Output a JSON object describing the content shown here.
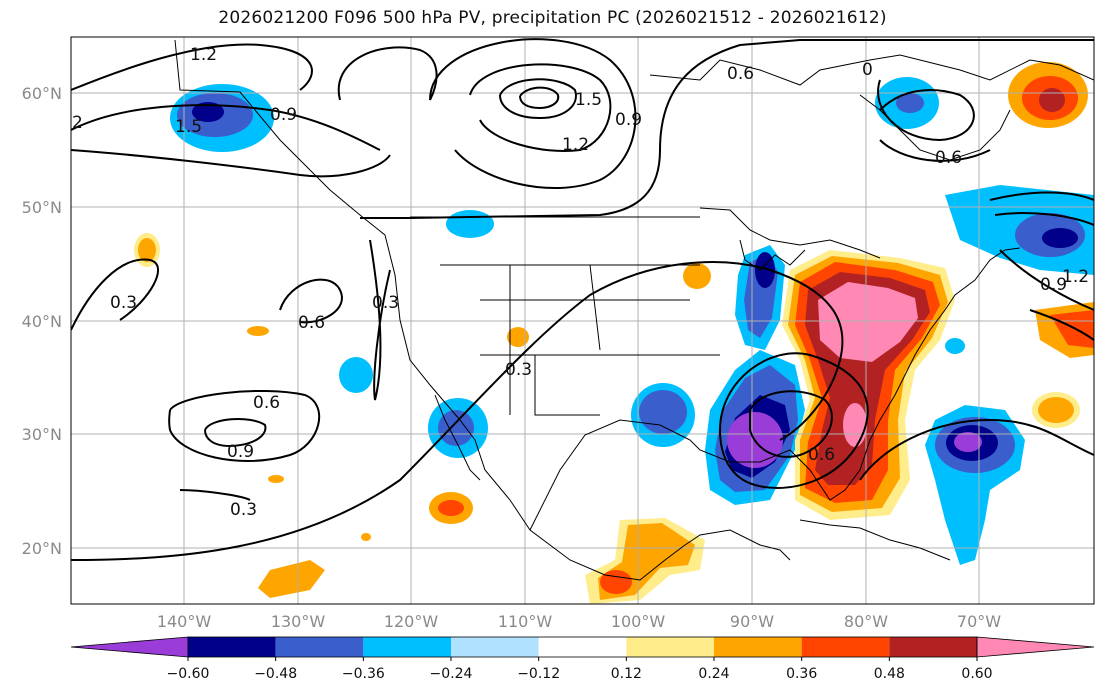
{
  "title": "2026021200 F096 500 hPa PV, precipitation PC (2026021512 - 2026021612)",
  "map": {
    "lat_labels": [
      "60°N",
      "50°N",
      "40°N",
      "30°N",
      "20°N"
    ],
    "lon_labels": [
      "140°W",
      "130°W",
      "120°W",
      "110°W",
      "100°W",
      "90°W",
      "80°W",
      "70°W"
    ],
    "contour_labels": [
      "1.2",
      "1.5",
      "2",
      "0.9",
      "1.5",
      "1.2",
      "0.9",
      "0.6",
      "0.6",
      "0.3",
      "0.6",
      "0.3",
      "0.3",
      "0.6",
      "0.9",
      "0.3",
      "0.6",
      "0.9",
      "1.2",
      "0"
    ]
  },
  "colorbar": {
    "tick_labels": [
      "−0.60",
      "−0.48",
      "−0.36",
      "−0.24",
      "−0.12",
      "0.12",
      "0.24",
      "0.36",
      "0.48",
      "0.60"
    ],
    "colors": [
      "#9a3cd8",
      "#00008b",
      "#3a5fcd",
      "#00bfff",
      "#b0e2ff",
      "#ffffff",
      "#ffec8b",
      "#ffa500",
      "#ff4500",
      "#b22222",
      "#ff88b4"
    ]
  }
}
